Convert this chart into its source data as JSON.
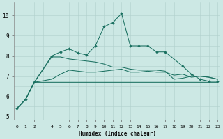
{
  "xlabel": "Humidex (Indice chaleur)",
  "bg_color": "#cce8e4",
  "line_color": "#1a7060",
  "xlim": [
    -0.3,
    23.3
  ],
  "ylim": [
    4.85,
    10.65
  ],
  "xtick_positions": [
    0,
    1,
    2,
    4,
    5,
    6,
    7,
    8,
    9,
    10,
    11,
    12,
    13,
    14,
    15,
    16,
    17,
    18,
    19,
    20,
    21,
    22,
    23
  ],
  "xtick_labels": [
    "0",
    "1",
    "2",
    "4",
    "5",
    "6",
    "7",
    "8",
    "9",
    "10",
    "11",
    "12",
    "13",
    "14",
    "15",
    "16",
    "17",
    "18",
    "19",
    "20",
    "21",
    "22",
    "23"
  ],
  "ytick_positions": [
    5,
    6,
    7,
    8,
    9,
    10
  ],
  "ytick_labels": [
    "5",
    "6",
    "7",
    "8",
    "9",
    "10"
  ],
  "lines": [
    {
      "x": [
        0,
        1,
        2,
        4,
        5,
        6,
        7,
        8,
        9,
        10,
        11,
        12,
        13,
        14,
        15,
        16,
        17,
        19,
        20,
        21,
        22,
        23
      ],
      "y": [
        5.4,
        5.85,
        6.7,
        8.0,
        8.2,
        8.35,
        8.15,
        8.05,
        8.5,
        9.45,
        9.65,
        10.1,
        8.5,
        8.5,
        8.5,
        8.2,
        8.2,
        7.5,
        7.1,
        6.85,
        6.75,
        6.75
      ],
      "marker": true
    },
    {
      "x": [
        0,
        1,
        2,
        4,
        5,
        6,
        7,
        8,
        9,
        10,
        11,
        12,
        13,
        14,
        15,
        16,
        17,
        18,
        19,
        20,
        21,
        22,
        23
      ],
      "y": [
        5.4,
        5.85,
        6.7,
        7.95,
        7.95,
        7.85,
        7.8,
        7.75,
        7.7,
        7.6,
        7.45,
        7.45,
        7.35,
        7.3,
        7.3,
        7.3,
        7.25,
        6.85,
        6.9,
        7.0,
        7.0,
        6.95,
        6.85
      ],
      "marker": false
    },
    {
      "x": [
        0,
        1,
        2,
        4,
        5,
        6,
        7,
        8,
        9,
        10,
        11,
        12,
        13,
        14,
        15,
        16,
        17,
        18,
        19,
        20,
        21,
        22,
        23
      ],
      "y": [
        5.4,
        5.85,
        6.7,
        6.85,
        7.1,
        7.3,
        7.25,
        7.2,
        7.2,
        7.25,
        7.3,
        7.35,
        7.2,
        7.2,
        7.25,
        7.2,
        7.2,
        7.05,
        7.1,
        6.95,
        7.0,
        6.95,
        6.85
      ],
      "marker": false
    },
    {
      "x": [
        0,
        1,
        2,
        4,
        5,
        6,
        7,
        8,
        9,
        10,
        11,
        12,
        13,
        14,
        15,
        16,
        17,
        18,
        19,
        20,
        21,
        22,
        23
      ],
      "y": [
        5.4,
        5.85,
        6.7,
        6.7,
        6.7,
        6.7,
        6.7,
        6.7,
        6.7,
        6.7,
        6.7,
        6.7,
        6.7,
        6.7,
        6.7,
        6.7,
        6.7,
        6.7,
        6.7,
        6.7,
        6.7,
        6.7,
        6.7
      ],
      "marker": false
    }
  ]
}
